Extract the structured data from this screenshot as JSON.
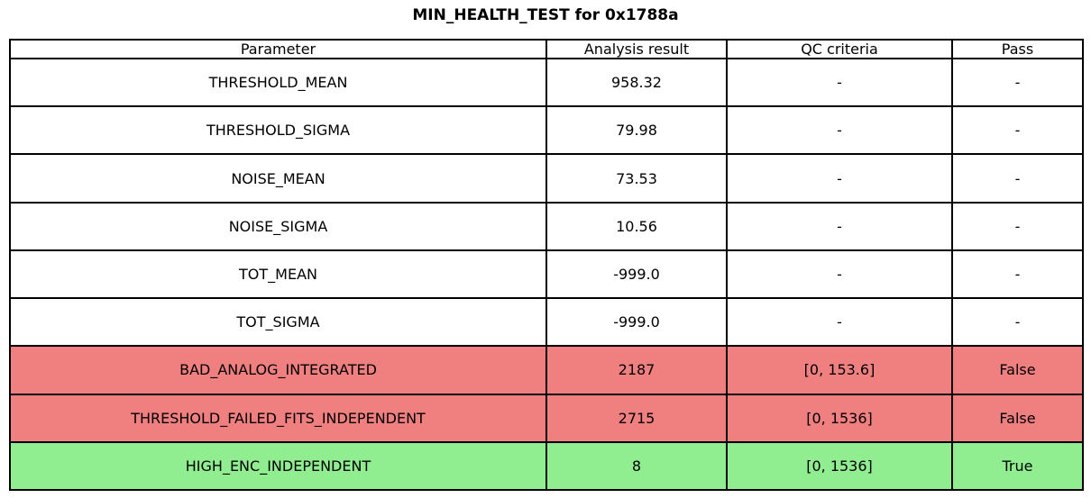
{
  "title": "MIN_HEALTH_TEST for 0x1788a",
  "colors": {
    "fail_row": "#F08080",
    "pass_row": "#90EE90",
    "default_row": "#FFFFFF",
    "border": "#000000",
    "text": "#000000",
    "background": "#FFFFFF"
  },
  "chart_data": {
    "type": "table",
    "title": "MIN_HEALTH_TEST for 0x1788a",
    "columns": [
      "Parameter",
      "Analysis result",
      "QC criteria",
      "Pass"
    ],
    "rows": [
      {
        "parameter": "THRESHOLD_MEAN",
        "analysis_result": "958.32",
        "qc_criteria": "-",
        "pass": "-",
        "status": "none"
      },
      {
        "parameter": "THRESHOLD_SIGMA",
        "analysis_result": "79.98",
        "qc_criteria": "-",
        "pass": "-",
        "status": "none"
      },
      {
        "parameter": "NOISE_MEAN",
        "analysis_result": "73.53",
        "qc_criteria": "-",
        "pass": "-",
        "status": "none"
      },
      {
        "parameter": "NOISE_SIGMA",
        "analysis_result": "10.56",
        "qc_criteria": "-",
        "pass": "-",
        "status": "none"
      },
      {
        "parameter": "TOT_MEAN",
        "analysis_result": "-999.0",
        "qc_criteria": "-",
        "pass": "-",
        "status": "none"
      },
      {
        "parameter": "TOT_SIGMA",
        "analysis_result": "-999.0",
        "qc_criteria": "-",
        "pass": "-",
        "status": "none"
      },
      {
        "parameter": "BAD_ANALOG_INTEGRATED",
        "analysis_result": "2187",
        "qc_criteria": "[0, 153.6]",
        "pass": "False",
        "status": "fail"
      },
      {
        "parameter": "THRESHOLD_FAILED_FITS_INDEPENDENT",
        "analysis_result": "2715",
        "qc_criteria": "[0, 1536]",
        "pass": "False",
        "status": "fail"
      },
      {
        "parameter": "HIGH_ENC_INDEPENDENT",
        "analysis_result": "8",
        "qc_criteria": "[0, 1536]",
        "pass": "True",
        "status": "pass"
      }
    ]
  }
}
